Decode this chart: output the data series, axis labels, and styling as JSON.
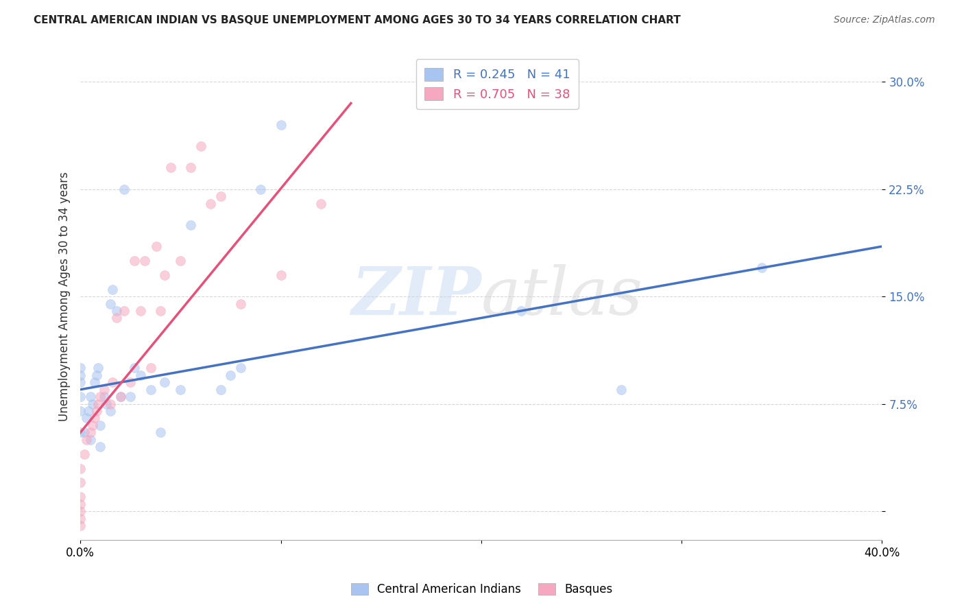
{
  "title": "CENTRAL AMERICAN INDIAN VS BASQUE UNEMPLOYMENT AMONG AGES 30 TO 34 YEARS CORRELATION CHART",
  "source": "Source: ZipAtlas.com",
  "ylabel": "Unemployment Among Ages 30 to 34 years",
  "xlim": [
    0.0,
    0.4
  ],
  "ylim": [
    -0.02,
    0.32
  ],
  "yticks": [
    0.0,
    0.075,
    0.15,
    0.225,
    0.3
  ],
  "ytick_labels": [
    "",
    "7.5%",
    "15.0%",
    "22.5%",
    "30.0%"
  ],
  "xticks": [
    0.0,
    0.1,
    0.2,
    0.3,
    0.4
  ],
  "xtick_labels": [
    "0.0%",
    "",
    "",
    "",
    "40.0%"
  ],
  "watermark": "ZIPatlas",
  "legend_blue_r": "R = 0.245",
  "legend_blue_n": "N = 41",
  "legend_pink_r": "R = 0.705",
  "legend_pink_n": "N = 38",
  "legend_blue_label": "Central American Indians",
  "legend_pink_label": "Basques",
  "blue_color": "#a8c4f0",
  "pink_color": "#f5a8bf",
  "blue_line_color": "#4472c4",
  "pink_line_color": "#e8507a",
  "blue_points_x": [
    0.0,
    0.0,
    0.0,
    0.0,
    0.0,
    0.0,
    0.002,
    0.003,
    0.004,
    0.005,
    0.005,
    0.006,
    0.007,
    0.008,
    0.009,
    0.01,
    0.01,
    0.012,
    0.013,
    0.015,
    0.015,
    0.016,
    0.018,
    0.02,
    0.022,
    0.025,
    0.027,
    0.03,
    0.035,
    0.04,
    0.042,
    0.05,
    0.055,
    0.07,
    0.075,
    0.08,
    0.09,
    0.1,
    0.22,
    0.27,
    0.34
  ],
  "blue_points_y": [
    0.055,
    0.07,
    0.08,
    0.09,
    0.095,
    0.1,
    0.055,
    0.065,
    0.07,
    0.05,
    0.08,
    0.075,
    0.09,
    0.095,
    0.1,
    0.045,
    0.06,
    0.08,
    0.075,
    0.07,
    0.145,
    0.155,
    0.14,
    0.08,
    0.225,
    0.08,
    0.1,
    0.095,
    0.085,
    0.055,
    0.09,
    0.085,
    0.2,
    0.085,
    0.095,
    0.1,
    0.225,
    0.27,
    0.14,
    0.085,
    0.17
  ],
  "pink_points_x": [
    0.0,
    0.0,
    0.0,
    0.0,
    0.0,
    0.0,
    0.0,
    0.002,
    0.003,
    0.005,
    0.006,
    0.007,
    0.008,
    0.009,
    0.01,
    0.012,
    0.015,
    0.016,
    0.018,
    0.02,
    0.022,
    0.025,
    0.027,
    0.03,
    0.032,
    0.035,
    0.038,
    0.04,
    0.042,
    0.045,
    0.05,
    0.055,
    0.06,
    0.065,
    0.07,
    0.08,
    0.1,
    0.12
  ],
  "pink_points_y": [
    -0.01,
    -0.005,
    0.0,
    0.005,
    0.01,
    0.02,
    0.03,
    0.04,
    0.05,
    0.055,
    0.06,
    0.065,
    0.07,
    0.075,
    0.08,
    0.085,
    0.075,
    0.09,
    0.135,
    0.08,
    0.14,
    0.09,
    0.175,
    0.14,
    0.175,
    0.1,
    0.185,
    0.14,
    0.165,
    0.24,
    0.175,
    0.24,
    0.255,
    0.215,
    0.22,
    0.145,
    0.165,
    0.215
  ],
  "blue_trend_x": [
    0.0,
    0.4
  ],
  "blue_trend_y": [
    0.085,
    0.185
  ],
  "pink_trend_x": [
    0.0,
    0.135
  ],
  "pink_trend_y": [
    0.055,
    0.285
  ],
  "background_color": "#ffffff",
  "grid_color": "#cccccc",
  "marker_size": 100,
  "marker_alpha": 0.55
}
